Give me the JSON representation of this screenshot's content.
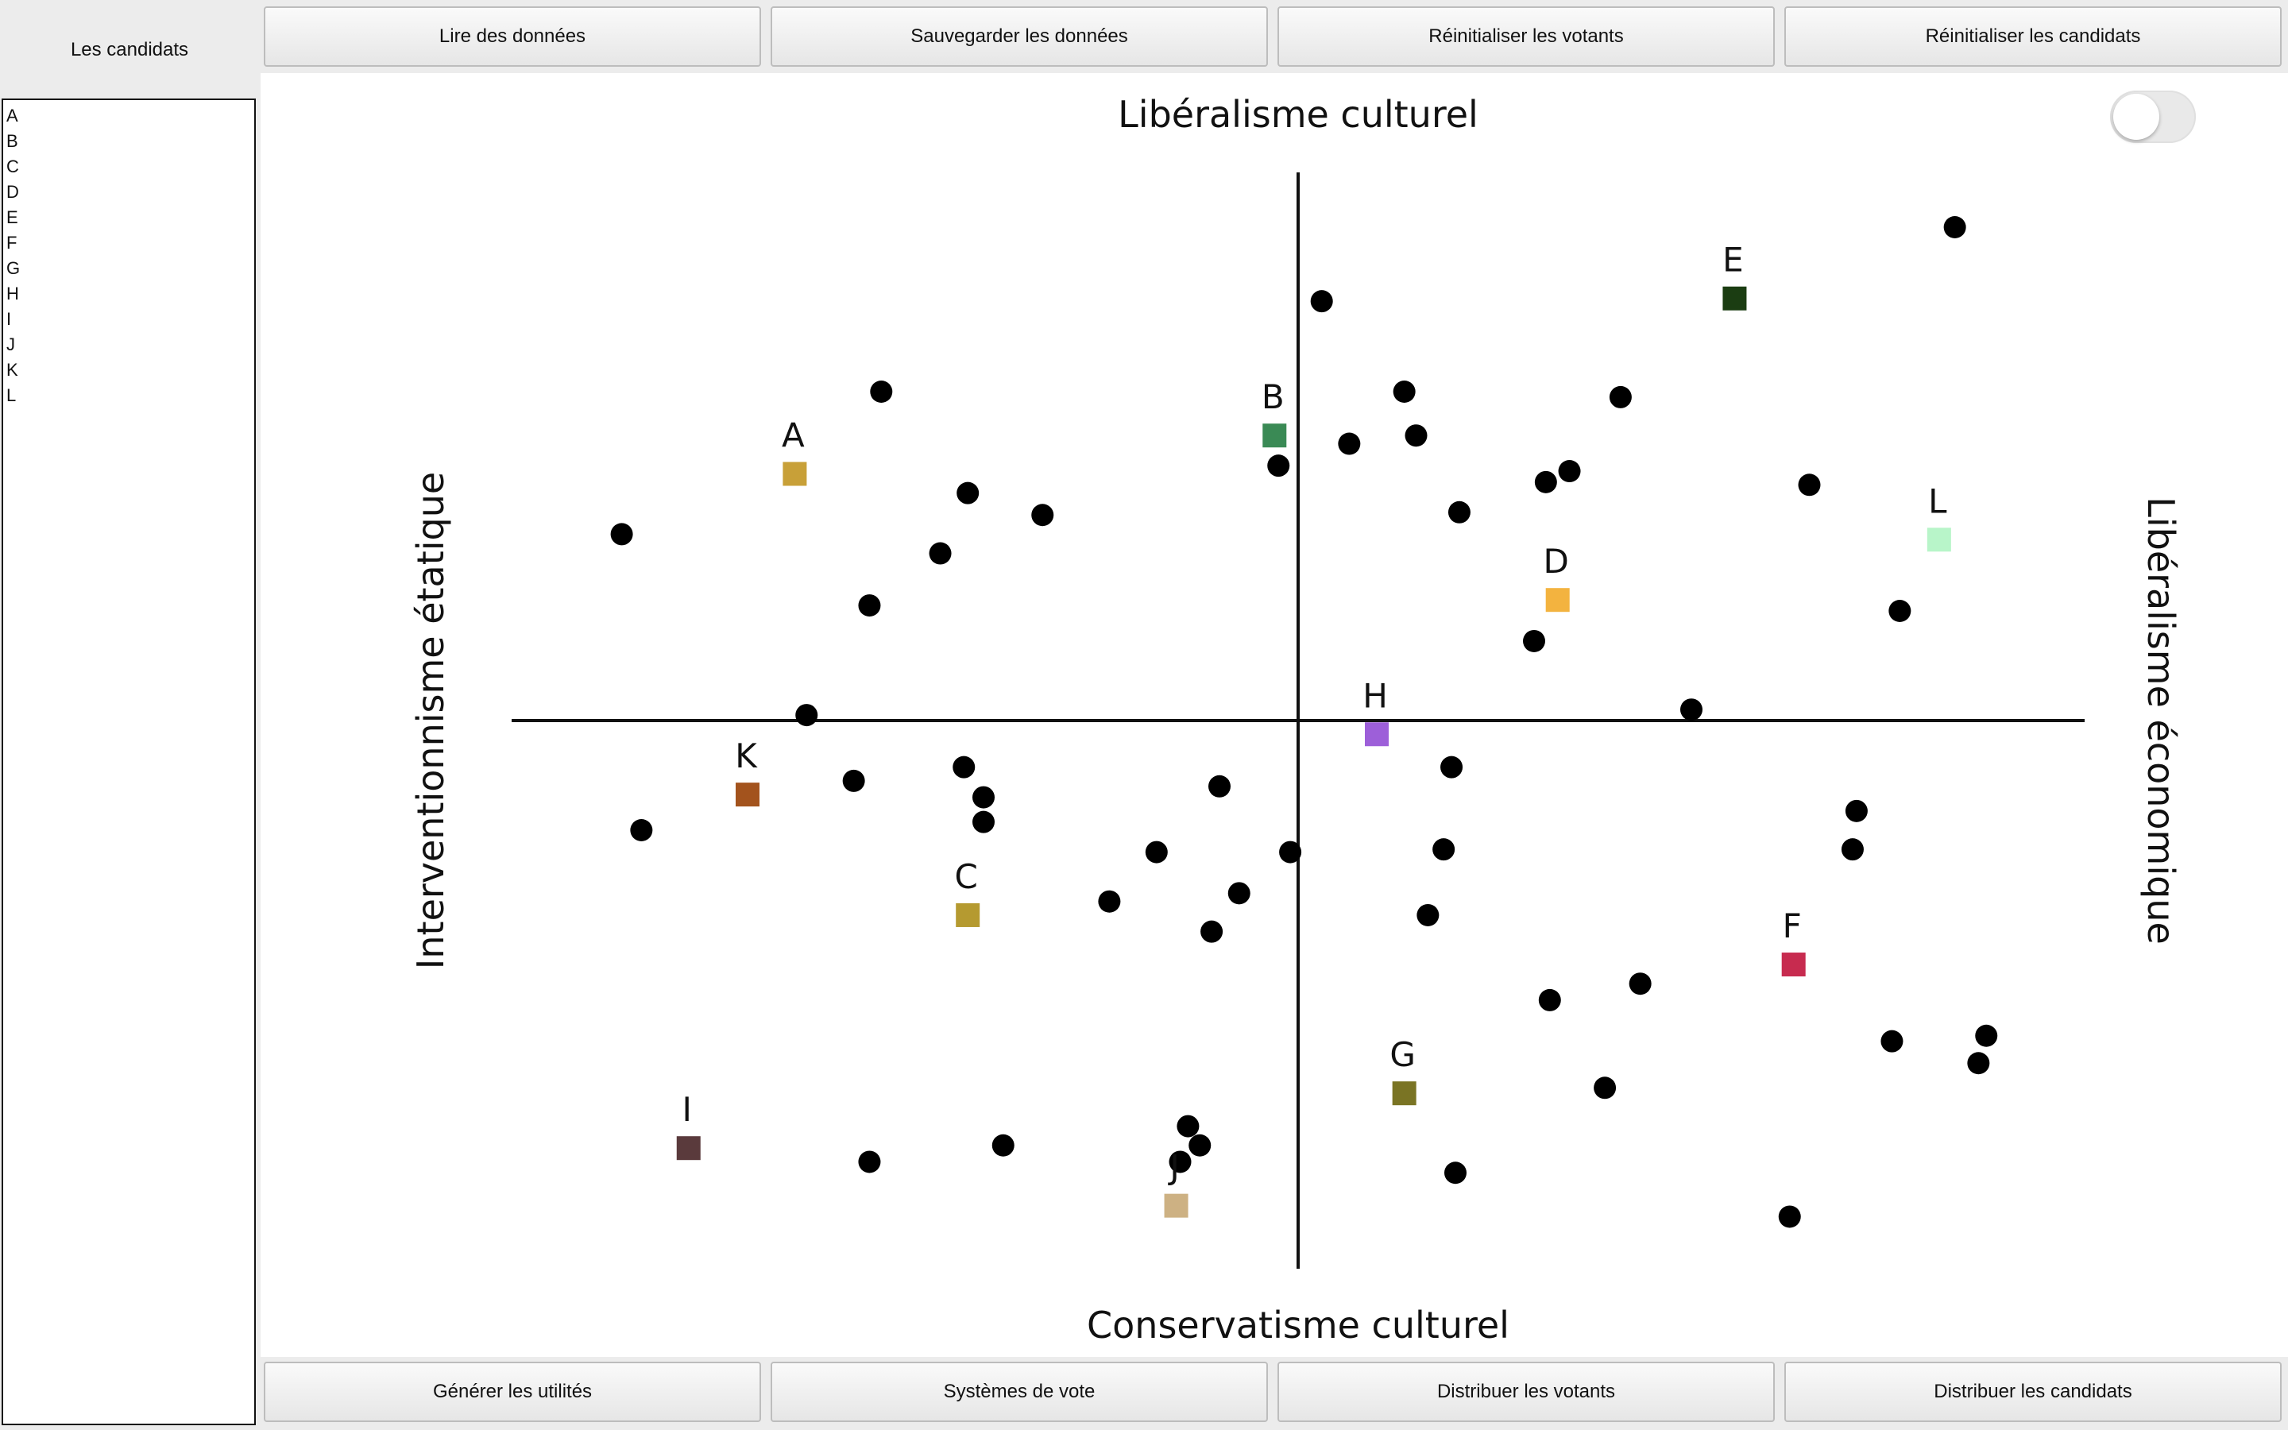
{
  "left_panel": {
    "title": "Les candidats",
    "candidates": [
      "A",
      "B",
      "C",
      "D",
      "E",
      "F",
      "G",
      "H",
      "I",
      "J",
      "K",
      "L"
    ]
  },
  "top_buttons": {
    "read": "Lire des données",
    "save": "Sauvegarder les données",
    "reset_voters": "Réinitialiser les votants",
    "reset_candidates": "Réinitialiser les candidats"
  },
  "bottom_buttons": {
    "utilities": "Générer les utilités",
    "voting_systems": "Systèmes de vote",
    "distribute_voters": "Distribuer les votants",
    "distribute_candidates": "Distribuer les candidats"
  },
  "toggle": {
    "on": false
  },
  "chart_data": {
    "type": "scatter",
    "axis_labels": {
      "top": "Libéralisme culturel",
      "bottom": "Conservatisme culturel",
      "left": "Interventionnisme étatique",
      "right": "Libéralisme économique"
    },
    "xlim": [
      -1,
      1
    ],
    "ylim": [
      -1,
      1
    ],
    "grid": false,
    "candidates": [
      {
        "name": "A",
        "x": -0.64,
        "y": 0.45,
        "color": "#c8a038"
      },
      {
        "name": "B",
        "x": -0.03,
        "y": 0.52,
        "color": "#3a8a55"
      },
      {
        "name": "C",
        "x": -0.42,
        "y": -0.355,
        "color": "#b59a30"
      },
      {
        "name": "D",
        "x": 0.33,
        "y": 0.22,
        "color": "#f3b33f"
      },
      {
        "name": "E",
        "x": 0.555,
        "y": 0.77,
        "color": "#1b3d12"
      },
      {
        "name": "F",
        "x": 0.63,
        "y": -0.445,
        "color": "#c72b4f"
      },
      {
        "name": "G",
        "x": 0.135,
        "y": -0.68,
        "color": "#7a7424"
      },
      {
        "name": "H",
        "x": 0.1,
        "y": -0.025,
        "color": "#9d5fd9"
      },
      {
        "name": "I",
        "x": -0.775,
        "y": -0.78,
        "color": "#5a3a3c"
      },
      {
        "name": "J",
        "x": -0.155,
        "y": -0.885,
        "color": "#cdb183"
      },
      {
        "name": "K",
        "x": -0.7,
        "y": -0.135,
        "color": "#a3531d"
      },
      {
        "name": "L",
        "x": 0.815,
        "y": 0.33,
        "color": "#b8f5c9"
      }
    ],
    "voters": [
      [
        0.835,
        0.9
      ],
      [
        0.03,
        0.765
      ],
      [
        -0.53,
        0.6
      ],
      [
        0.135,
        0.6
      ],
      [
        0.41,
        0.59
      ],
      [
        0.15,
        0.52
      ],
      [
        0.065,
        0.505
      ],
      [
        -0.025,
        0.465
      ],
      [
        0.345,
        0.455
      ],
      [
        0.315,
        0.435
      ],
      [
        0.65,
        0.43
      ],
      [
        -0.42,
        0.415
      ],
      [
        -0.325,
        0.375
      ],
      [
        0.205,
        0.38
      ],
      [
        -0.86,
        0.34
      ],
      [
        -0.455,
        0.305
      ],
      [
        -0.545,
        0.21
      ],
      [
        0.765,
        0.2
      ],
      [
        0.3,
        0.145
      ],
      [
        -0.625,
        0.01
      ],
      [
        0.5,
        0.02
      ],
      [
        -0.425,
        -0.085
      ],
      [
        -0.565,
        -0.11
      ],
      [
        0.195,
        -0.085
      ],
      [
        -0.4,
        -0.14
      ],
      [
        -0.1,
        -0.12
      ],
      [
        -0.4,
        -0.185
      ],
      [
        0.71,
        -0.165
      ],
      [
        -0.835,
        -0.2
      ],
      [
        -0.18,
        -0.24
      ],
      [
        -0.01,
        -0.24
      ],
      [
        0.185,
        -0.235
      ],
      [
        0.705,
        -0.235
      ],
      [
        -0.075,
        -0.315
      ],
      [
        -0.24,
        -0.33
      ],
      [
        -0.11,
        -0.385
      ],
      [
        0.165,
        -0.355
      ],
      [
        0.435,
        -0.48
      ],
      [
        0.32,
        -0.51
      ],
      [
        0.755,
        -0.585
      ],
      [
        0.875,
        -0.575
      ],
      [
        0.865,
        -0.625
      ],
      [
        0.39,
        -0.67
      ],
      [
        -0.14,
        -0.74
      ],
      [
        -0.375,
        -0.775
      ],
      [
        -0.545,
        -0.805
      ],
      [
        -0.125,
        -0.775
      ],
      [
        -0.15,
        -0.805
      ],
      [
        0.2,
        -0.825
      ],
      [
        0.625,
        -0.905
      ]
    ]
  }
}
